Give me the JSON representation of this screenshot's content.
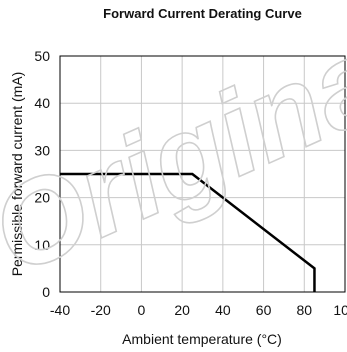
{
  "chart_data": {
    "type": "line",
    "title": "Forward Current Derating  Curve",
    "xlabel": "Ambient temperature (°C)",
    "ylabel": "Permissible forward current  (mA)",
    "xlim": [
      -40,
      100
    ],
    "ylim": [
      0,
      50
    ],
    "xticks": [
      -40,
      -20,
      0,
      20,
      40,
      60,
      80,
      100
    ],
    "yticks": [
      0,
      10,
      20,
      30,
      40,
      50
    ],
    "grid": true,
    "series": [
      {
        "x": [
          -40,
          25,
          85,
          85
        ],
        "y": [
          25,
          25,
          5,
          0
        ]
      }
    ],
    "colors": {
      "line": "#000000",
      "grid": "#c8c8c8",
      "watermark": "#d0d0d0"
    }
  },
  "watermark": {
    "text": "Original"
  }
}
